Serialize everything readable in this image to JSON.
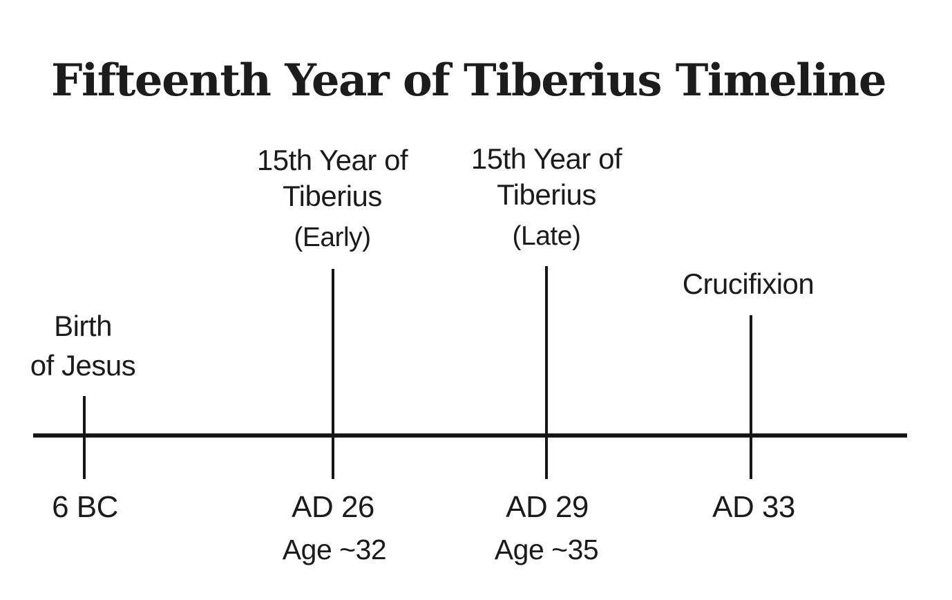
{
  "page": {
    "background": "#ffffff",
    "ink_color": "#1a1a1a"
  },
  "header": {
    "title": "Fifteenth Year of Tiberius Timeline"
  },
  "timeline": {
    "events": [
      {
        "name": "Birth of Jesus",
        "label_lines": [
          "Birth",
          "of Jesus"
        ],
        "year": "6 BC",
        "age": null
      },
      {
        "name": "15th Year of Tiberius (Early)",
        "label_lines": [
          "15th Year of",
          "Tiberius"
        ],
        "sublabel": "(Early)",
        "year": "AD 26",
        "age": "Age ~32"
      },
      {
        "name": "15th Year of Tiberius (Late)",
        "label_lines": [
          "15th Year of",
          "Tiberius"
        ],
        "sublabel": "(Late)",
        "year": "AD 29",
        "age": "Age ~35"
      },
      {
        "name": "Crucifixion",
        "label_lines": [
          "Crucifixion"
        ],
        "year": "AD 33",
        "age": null
      }
    ]
  }
}
